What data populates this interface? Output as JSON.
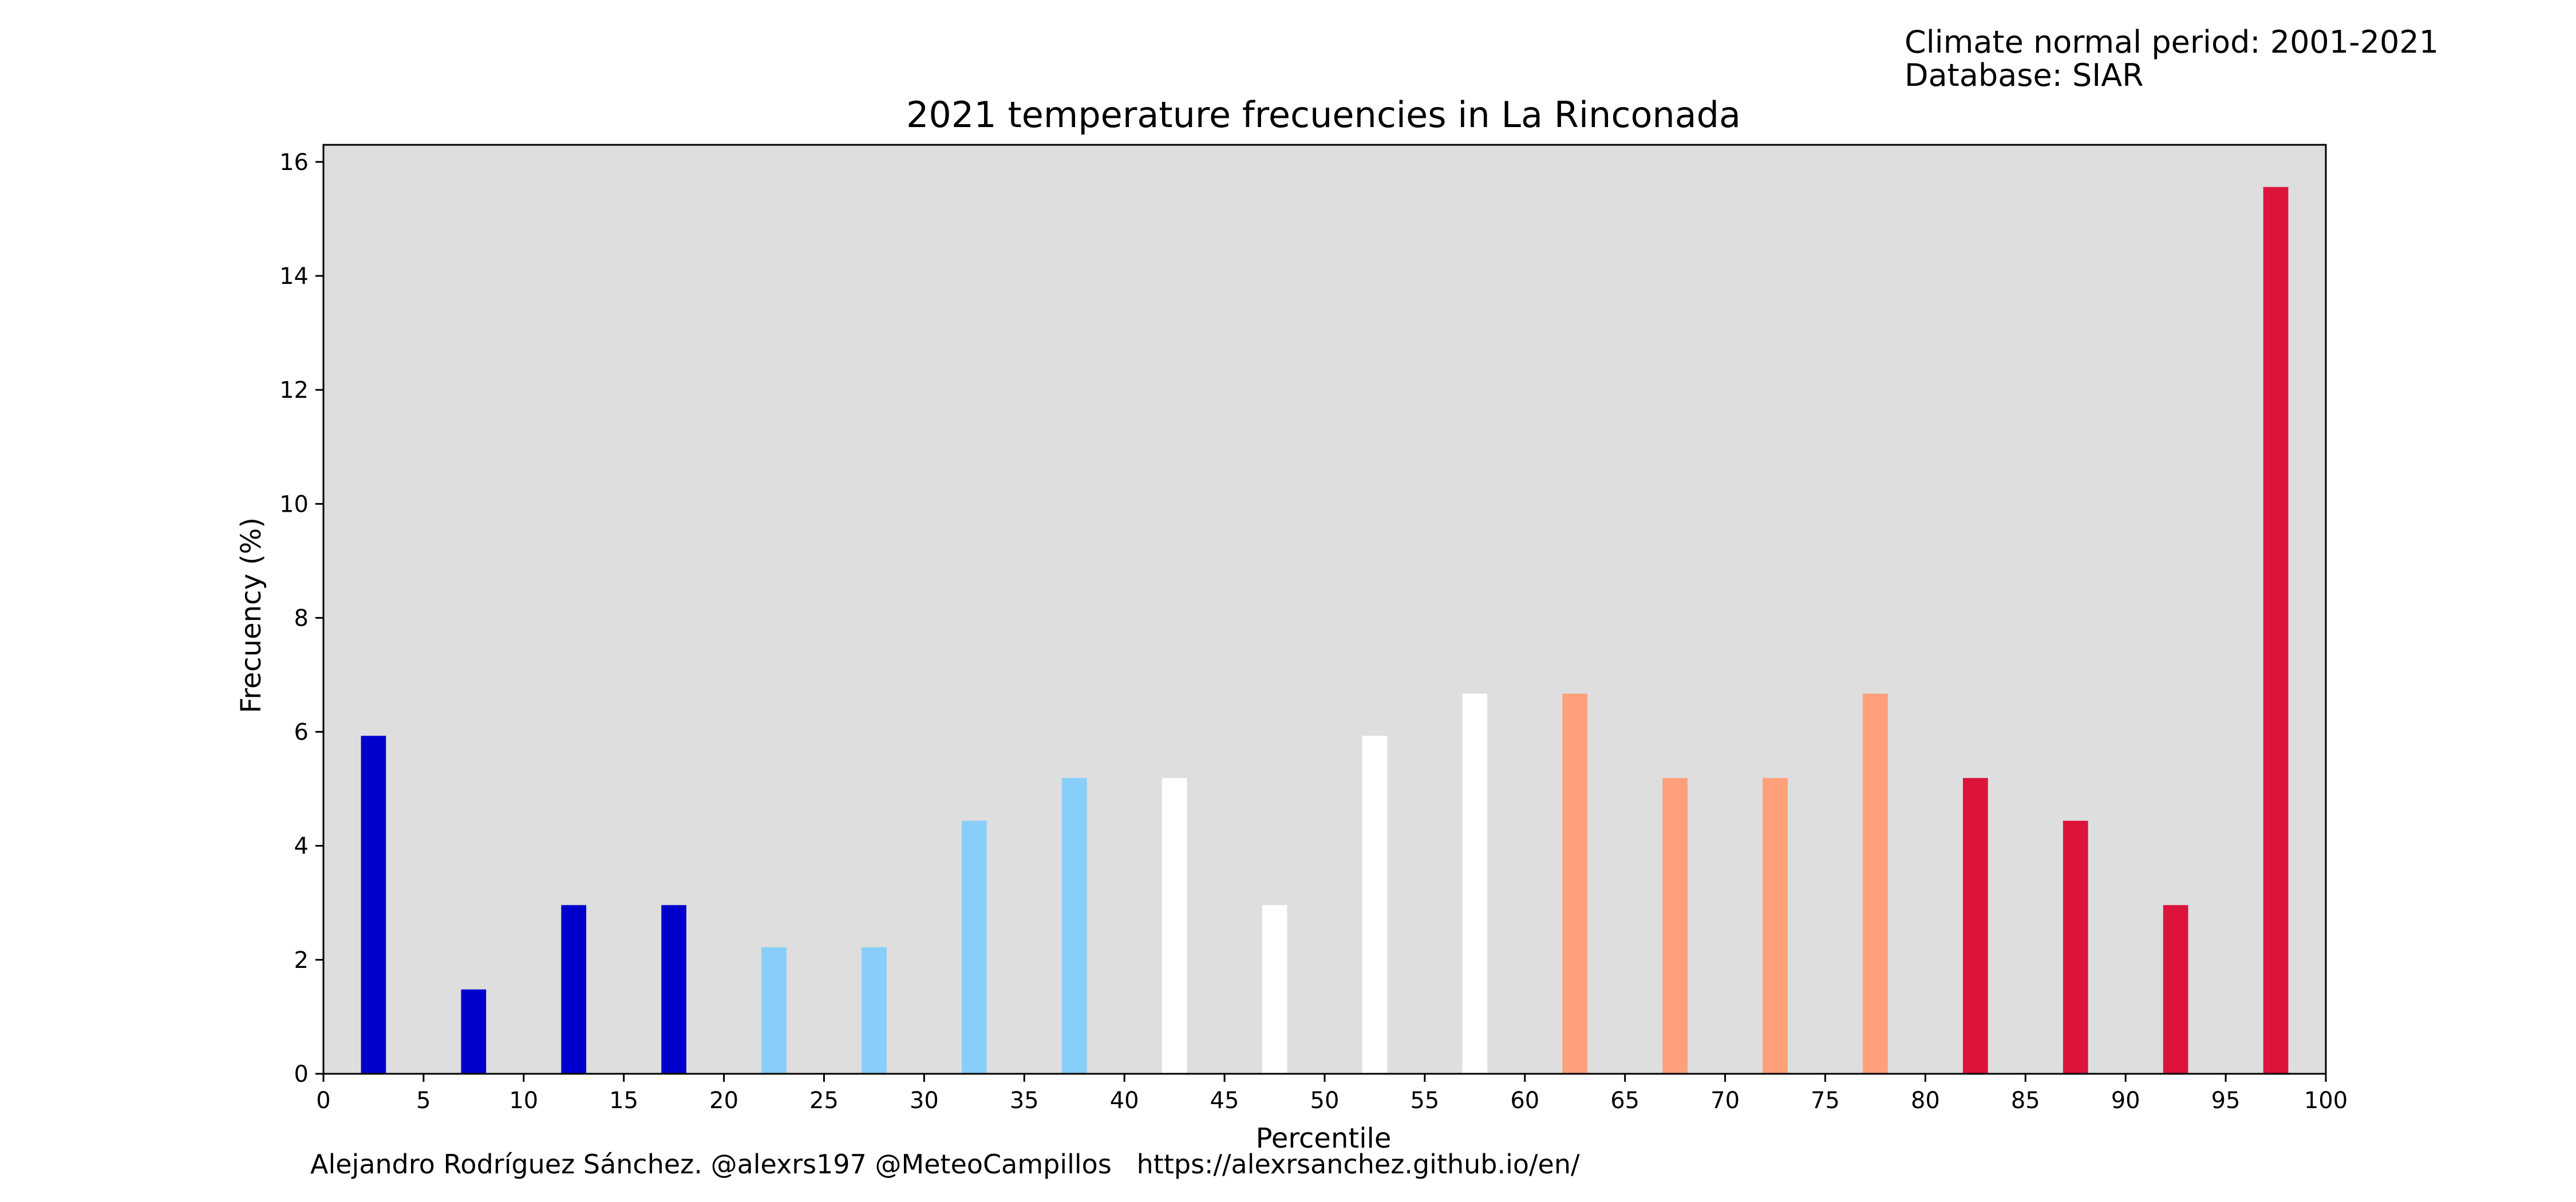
{
  "header": {
    "normal_period": "Climate normal period: 2001-2021",
    "database": "Database: SIAR"
  },
  "footer": {
    "credits": "Alejandro Rodríguez Sánchez. @alexrs197 @MeteoCampillos   https://alexrsanchez.github.io/en/"
  },
  "chart_data": {
    "type": "bar",
    "title": "2021 temperature frecuencies in La Rinconada",
    "xlabel": "Percentile",
    "ylabel": "Frecuency (%)",
    "xlim": [
      0,
      100
    ],
    "ylim": [
      0,
      16.3
    ],
    "xticks": [
      0,
      5,
      10,
      15,
      20,
      25,
      30,
      35,
      40,
      45,
      50,
      55,
      60,
      65,
      70,
      75,
      80,
      85,
      90,
      95,
      100
    ],
    "yticks": [
      0,
      2,
      4,
      6,
      8,
      10,
      12,
      14,
      16
    ],
    "bar_width": 1.25,
    "grid": false,
    "background_color": "#dedede",
    "bars": [
      {
        "x": 2.5,
        "value": 5.93,
        "color": "#0000cd"
      },
      {
        "x": 7.5,
        "value": 1.48,
        "color": "#0000cd"
      },
      {
        "x": 12.5,
        "value": 2.96,
        "color": "#0000cd"
      },
      {
        "x": 17.5,
        "value": 2.96,
        "color": "#0000cd"
      },
      {
        "x": 22.5,
        "value": 2.22,
        "color": "#87cefa"
      },
      {
        "x": 27.5,
        "value": 2.22,
        "color": "#87cefa"
      },
      {
        "x": 32.5,
        "value": 4.44,
        "color": "#87cefa"
      },
      {
        "x": 37.5,
        "value": 5.19,
        "color": "#87cefa"
      },
      {
        "x": 42.5,
        "value": 5.19,
        "color": "#ffffff"
      },
      {
        "x": 47.5,
        "value": 2.96,
        "color": "#ffffff"
      },
      {
        "x": 52.5,
        "value": 5.93,
        "color": "#ffffff"
      },
      {
        "x": 57.5,
        "value": 6.67,
        "color": "#ffffff"
      },
      {
        "x": 62.5,
        "value": 6.67,
        "color": "#ffa07a"
      },
      {
        "x": 67.5,
        "value": 5.19,
        "color": "#ffa07a"
      },
      {
        "x": 72.5,
        "value": 5.19,
        "color": "#ffa07a"
      },
      {
        "x": 77.5,
        "value": 6.67,
        "color": "#ffa07a"
      },
      {
        "x": 82.5,
        "value": 5.19,
        "color": "#dc143c"
      },
      {
        "x": 87.5,
        "value": 4.44,
        "color": "#dc143c"
      },
      {
        "x": 92.5,
        "value": 2.96,
        "color": "#dc143c"
      },
      {
        "x": 97.5,
        "value": 15.56,
        "color": "#dc143c"
      }
    ]
  }
}
